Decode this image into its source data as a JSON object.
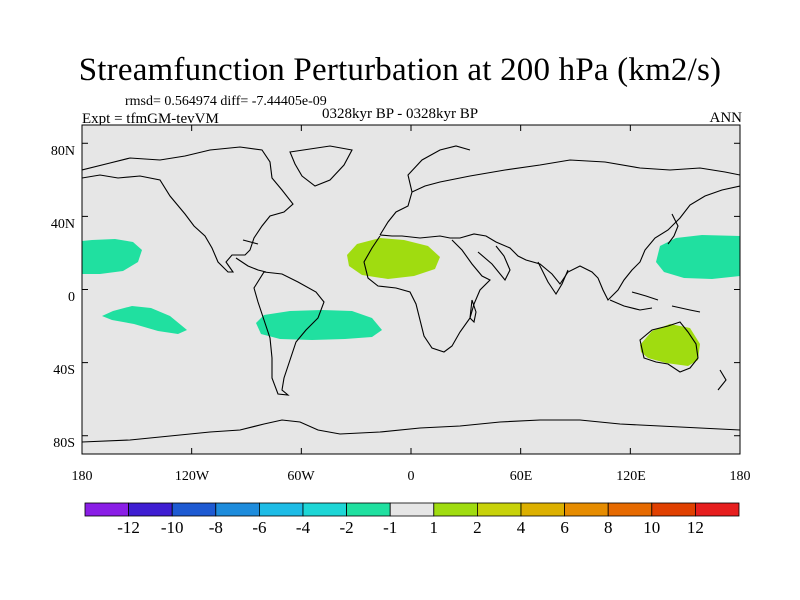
{
  "title": "Streamfunction Perturbation at 200 hPa (km2/s)",
  "stats_text": "rmsd= 0.564974  diff= -7.44405e-09",
  "experiment_text": "Expt = tfmGM-tevVM",
  "period_text": "0328kyr BP - 0328kyr BP",
  "season_text": "ANN",
  "colors": {
    "ocean_background": "#e6e6e6",
    "coastline": "#000000",
    "neg_1_to_2": "#20e0a0",
    "pos_1_to_2": "#a0dc10"
  },
  "map": {
    "projection": "cylindrical-equidistant",
    "lon_range": [
      -180,
      180
    ],
    "lat_range": [
      -90,
      90
    ],
    "y_ticks": [
      "80N",
      "40N",
      "0",
      "40S",
      "80S"
    ],
    "x_ticks": [
      "180",
      "120W",
      "60W",
      "0",
      "60E",
      "120E",
      "180"
    ]
  },
  "anomaly_regions": [
    {
      "name": "north-pacific-west-anomaly",
      "sign": "negative",
      "bin": "-2 to -1",
      "lon": -165,
      "lat": 22
    },
    {
      "name": "south-pacific-anomaly",
      "sign": "negative",
      "bin": "-2 to -1",
      "lon": -142,
      "lat": -14
    },
    {
      "name": "south-america-atlantic-anomaly",
      "sign": "negative",
      "bin": "-2 to -1",
      "lon": -42,
      "lat": -17
    },
    {
      "name": "north-africa-anomaly",
      "sign": "positive",
      "bin": "1 to 2",
      "lon": -8,
      "lat": 22
    },
    {
      "name": "west-pacific-anomaly",
      "sign": "negative",
      "bin": "-2 to -1",
      "lon": 150,
      "lat": 22
    },
    {
      "name": "australia-anomaly",
      "sign": "positive",
      "bin": "1 to 2",
      "lon": 137,
      "lat": -26
    }
  ],
  "colorbar": {
    "labels": [
      "-12",
      "-10",
      "-8",
      "-6",
      "-4",
      "-2",
      "-1",
      "1",
      "2",
      "4",
      "6",
      "8",
      "10",
      "12"
    ],
    "colors": [
      "#8a1ee6",
      "#3f1ed2",
      "#1e5ad2",
      "#1e8cdc",
      "#1ebce6",
      "#1ed6d6",
      "#20e0a0",
      "#e6e6e6",
      "#a0dc10",
      "#c8d20a",
      "#dcb000",
      "#e68c00",
      "#e66a00",
      "#e04000",
      "#e61e1e"
    ]
  }
}
